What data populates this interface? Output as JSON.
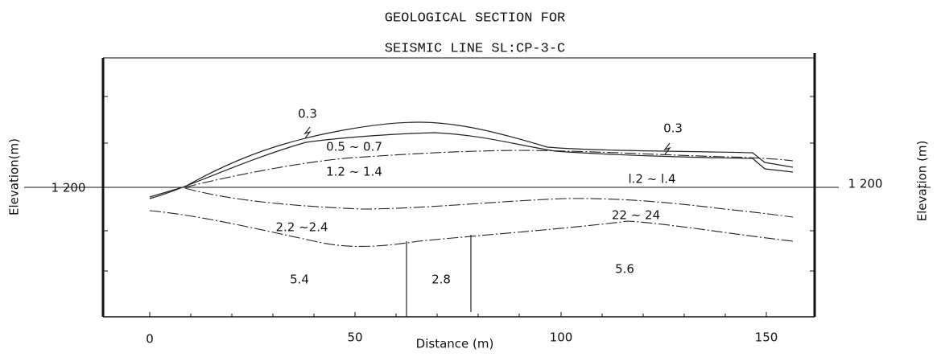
{
  "title": {
    "line1": "GEOLOGICAL SECTION FOR",
    "line2": "SEISMIC LINE SL:CP-3-C"
  },
  "axes": {
    "x_label": "Distance (m)",
    "y_label_left": "Elevation(m)",
    "y_label_right": "Elevation (m)",
    "x_ticks": [
      "0",
      "50",
      "100",
      "150"
    ],
    "y_tick_left": "1 200",
    "y_tick_right": "1 200"
  },
  "layers": [
    "0.3",
    "0.5 ~ 0.7",
    "0.3",
    "1.2 ~ 1.4",
    "l.2 ~ l.4",
    "2.2 ~2.4",
    "22 ~ 24",
    "5.4",
    "2.8",
    "5.6"
  ]
}
